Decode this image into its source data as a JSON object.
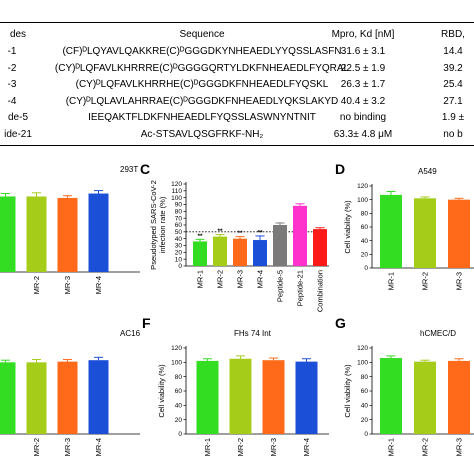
{
  "table": {
    "headers": {
      "name": "des",
      "sequence": "Sequence",
      "mpro": "Mpro, Kd [nM]",
      "rbd": "RBD,"
    },
    "rows": [
      {
        "name": "-1",
        "sequence": "(CF)ᴰLQYAVLQAKKRE(C)ᴰGGGDKYNHEAEDLYYQSSLASFN",
        "mpro": "31.6 ± 3.1",
        "rbd": "14.4"
      },
      {
        "name": "-2",
        "sequence": "(CY)ᴰLQFAVLKHRRRE(C)ᴰGGGGQRTYLDKFNHEAEDLFYQRAL",
        "mpro": "22.5 ± 1.9",
        "rbd": "39.2"
      },
      {
        "name": "-3",
        "sequence": "(CY)ᴰLQFAVLKHRRHE(C)ᴰGGGDKFNHEAEDLFYQSKL",
        "mpro": "26.3 ± 1.7",
        "rbd": "25.4"
      },
      {
        "name": "-4",
        "sequence": "(CY)ᴰLQLAVLAHRRAE(C)ᴰGGGDKFNHEAEDLYQKSLAKYD",
        "mpro": "40.4 ± 3.2",
        "rbd": "27.1"
      },
      {
        "name": "de-5",
        "sequence": "IEEQAKTFLDKFNHEAEDLFYQSSLASWNYNTNIT",
        "mpro": "no binding",
        "rbd": "1.9 ±"
      },
      {
        "name": "ide-21",
        "sequence": "Ac-STSAVLQSGFRKF-NH₂",
        "mpro": "63.3± 4.8 μM",
        "rbd": "no b"
      }
    ]
  },
  "chart_data": [
    {
      "id": "B",
      "letter": "",
      "type": "bar",
      "title": "293T",
      "ylabel": "",
      "categories": [
        "",
        "MR-2",
        "MR-3",
        "MR-4"
      ],
      "values": [
        103,
        103,
        101,
        107
      ],
      "errors": [
        4,
        5,
        3,
        4
      ],
      "colors": [
        "#33dd22",
        "#a6cc1a",
        "#ff6a1a",
        "#1c4fd8"
      ],
      "ylim": [
        0,
        120
      ],
      "yticks": [],
      "show_yaxis": false
    },
    {
      "id": "C",
      "letter": "C",
      "type": "bar",
      "title": "",
      "ylabel": "Pseudotyped SARS-CoV-2 infection rate (%)",
      "categories": [
        "MR-1",
        "MR-2",
        "MR-3",
        "MR-4",
        "Peptide-5",
        "Peptide-21",
        "Combination"
      ],
      "values": [
        36,
        43,
        40,
        38,
        60,
        88,
        54
      ],
      "errors": [
        3,
        3,
        3,
        6,
        3,
        3,
        2
      ],
      "colors": [
        "#33dd22",
        "#a6cc1a",
        "#ff6a1a",
        "#1c4fd8",
        "#7a7a7a",
        "#ff33cc",
        "#ff1a1a"
      ],
      "significance": [
        "**",
        "**",
        "**",
        "**",
        "",
        "",
        ""
      ],
      "ylim": [
        0,
        120
      ],
      "yticks": [
        0,
        10,
        20,
        30,
        40,
        50,
        60,
        70,
        80,
        90,
        100,
        110,
        120
      ],
      "reference_line": 50
    },
    {
      "id": "D",
      "letter": "D",
      "type": "bar",
      "title": "A549",
      "ylabel": "Cell viability (%)",
      "categories": [
        "MR-1",
        "MR-2",
        "MR-3"
      ],
      "values": [
        107,
        102,
        100
      ],
      "errors": [
        5,
        2,
        2
      ],
      "colors": [
        "#33dd22",
        "#a6cc1a",
        "#ff6a1a"
      ],
      "ylim": [
        0,
        120
      ],
      "yticks": [
        0,
        20,
        40,
        60,
        80,
        100,
        120
      ]
    },
    {
      "id": "E",
      "letter": "",
      "type": "bar",
      "title": "AC16",
      "ylabel": "",
      "categories": [
        "",
        "MR-2",
        "MR-3",
        "MR-4"
      ],
      "values": [
        100,
        100,
        101,
        103
      ],
      "errors": [
        3,
        4,
        3,
        4
      ],
      "colors": [
        "#33dd22",
        "#a6cc1a",
        "#ff6a1a",
        "#1c4fd8"
      ],
      "ylim": [
        0,
        120
      ],
      "yticks": [],
      "show_yaxis": false
    },
    {
      "id": "F",
      "letter": "F",
      "type": "bar",
      "title": "FHs 74 Int",
      "ylabel": "Cell viability (%)",
      "categories": [
        "MR-1",
        "MR-2",
        "MR-3",
        "MR-4"
      ],
      "values": [
        102,
        105,
        103,
        101
      ],
      "errors": [
        3,
        4,
        3,
        4
      ],
      "colors": [
        "#33dd22",
        "#a6cc1a",
        "#ff6a1a",
        "#1c4fd8"
      ],
      "ylim": [
        0,
        120
      ],
      "yticks": [
        0,
        20,
        40,
        60,
        80,
        100,
        120
      ]
    },
    {
      "id": "G",
      "letter": "G",
      "type": "bar",
      "title": "hCMEC/D",
      "ylabel": "Cell viability (%)",
      "categories": [
        "MR-1",
        "MR-2",
        "MR-3"
      ],
      "values": [
        106,
        101,
        102
      ],
      "errors": [
        3,
        2,
        3
      ],
      "colors": [
        "#33dd22",
        "#a6cc1a",
        "#ff6a1a"
      ],
      "ylim": [
        0,
        120
      ],
      "yticks": [
        0,
        20,
        40,
        60,
        80,
        100,
        120
      ]
    }
  ]
}
